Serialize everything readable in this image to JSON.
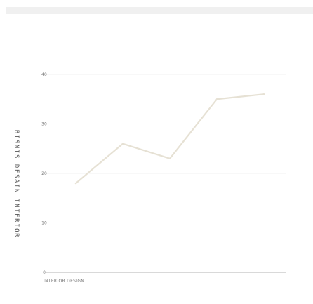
{
  "chart_data": {
    "type": "line",
    "title": "BISNIS DESAIN INTERIOR",
    "xlabel": "",
    "ylabel": "",
    "x": [
      1,
      2,
      3,
      4,
      5
    ],
    "x_tick_label": "INTERIOR DESIGN",
    "series": [
      {
        "values": [
          18,
          26,
          23,
          35,
          36
        ],
        "color": "#e6e1d4"
      }
    ],
    "ylim": [
      0,
      40
    ],
    "yticks": [
      "0",
      "10",
      "20",
      "30",
      "40"
    ],
    "grid": true,
    "legend": "none"
  }
}
